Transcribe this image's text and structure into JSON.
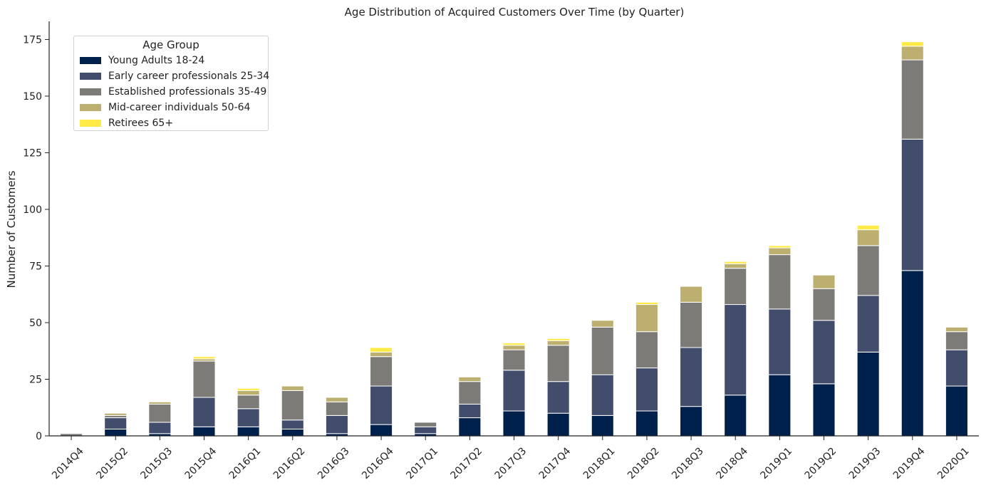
{
  "chart_data": {
    "type": "bar",
    "stacked": true,
    "title": "Age Distribution of Acquired Customers Over Time (by Quarter)",
    "xlabel": "",
    "ylabel": "Number of Customers",
    "ylim": [
      0,
      183
    ],
    "yticks": [
      0,
      25,
      50,
      75,
      100,
      125,
      150,
      175
    ],
    "grid": false,
    "legend_position": "top-left",
    "legend_title": "Age Group",
    "categories": [
      "2014Q4",
      "2015Q2",
      "2015Q3",
      "2015Q4",
      "2016Q1",
      "2016Q2",
      "2016Q3",
      "2016Q4",
      "2017Q1",
      "2017Q2",
      "2017Q3",
      "2017Q4",
      "2018Q1",
      "2018Q2",
      "2018Q3",
      "2018Q4",
      "2019Q1",
      "2019Q2",
      "2019Q3",
      "2019Q4",
      "2020Q1"
    ],
    "series": [
      {
        "name": "Young Adults 18-24",
        "color": "#00204c",
        "values": [
          0,
          3,
          1,
          4,
          4,
          3,
          1,
          5,
          1,
          8,
          11,
          10,
          9,
          11,
          13,
          18,
          27,
          23,
          37,
          73,
          22
        ]
      },
      {
        "name": "Early career professionals 25-34",
        "color": "#414d6b",
        "values": [
          0,
          5,
          5,
          13,
          8,
          4,
          8,
          17,
          3,
          6,
          18,
          14,
          18,
          19,
          26,
          40,
          29,
          28,
          25,
          58,
          16
        ]
      },
      {
        "name": "Established professionals 35-49",
        "color": "#7c7b78",
        "values": [
          1,
          1,
          8,
          16,
          6,
          13,
          6,
          13,
          2,
          10,
          9,
          16,
          21,
          16,
          20,
          16,
          24,
          14,
          22,
          35,
          8
        ]
      },
      {
        "name": "Mid-career individuals 50-64",
        "color": "#bcaf6f",
        "values": [
          0,
          1,
          1,
          1,
          2,
          2,
          2,
          2,
          0,
          2,
          2,
          2,
          3,
          12,
          7,
          2,
          3,
          6,
          7,
          6,
          2
        ]
      },
      {
        "name": "Retirees 65+",
        "color": "#ffea46",
        "values": [
          0,
          0,
          0,
          1,
          1,
          0,
          0,
          2,
          0,
          0,
          1,
          1,
          0,
          1,
          0,
          1,
          1,
          0,
          2,
          2,
          0
        ]
      }
    ]
  }
}
